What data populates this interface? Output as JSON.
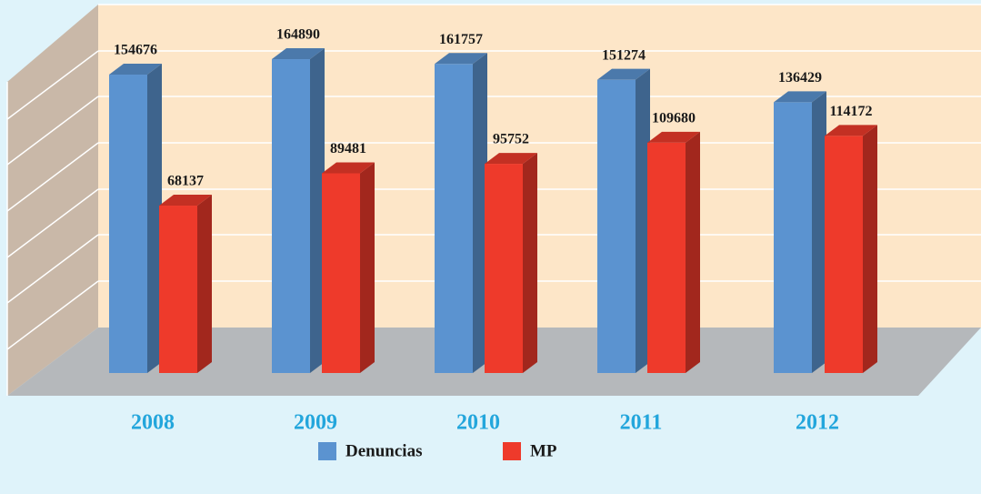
{
  "chart_data": {
    "type": "bar3d",
    "categories": [
      "2008",
      "2009",
      "2010",
      "2011",
      "2012"
    ],
    "series": [
      {
        "name": "Denuncias",
        "color": "#5b93d0",
        "values": [
          154676,
          164890,
          161757,
          151274,
          136429
        ]
      },
      {
        "name": "MP",
        "color": "#ee3a2b",
        "values": [
          68137,
          89481,
          95752,
          109680,
          114172
        ]
      }
    ],
    "ylim": [
      0,
      200000
    ]
  }
}
